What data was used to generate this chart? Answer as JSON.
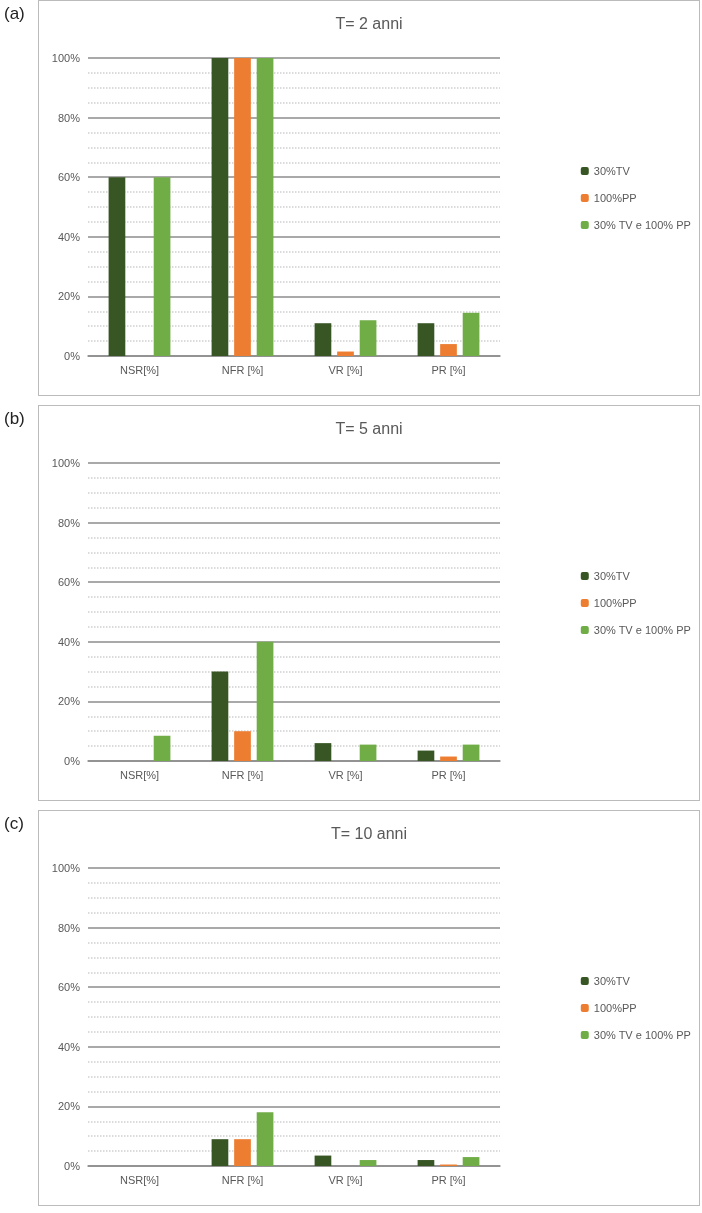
{
  "chart_data": [
    {
      "type": "bar",
      "title": "T= 2 anni",
      "annotations": [
        "(a)"
      ],
      "categories": [
        "NSR[%]",
        "NFR [%]",
        "VR [%]",
        "PR [%]"
      ],
      "series": [
        {
          "name": "30%TV",
          "color": "#375623",
          "values": [
            60,
            100,
            11,
            11
          ]
        },
        {
          "name": "100%PP",
          "color": "#ed7d31",
          "values": [
            0,
            100,
            1.5,
            4
          ]
        },
        {
          "name": "30% TV e 100% PP",
          "color": "#70ad47",
          "values": [
            60,
            100,
            12,
            14.5
          ]
        }
      ],
      "ylim": [
        0,
        100
      ],
      "yticks": [
        {
          "value": 0,
          "label": "0%"
        },
        {
          "value": 20,
          "label": "20%"
        },
        {
          "value": 40,
          "label": "40%"
        },
        {
          "value": 60,
          "label": "60%"
        },
        {
          "value": 80,
          "label": "80%"
        },
        {
          "value": 100,
          "label": "100%"
        }
      ],
      "grid": "y",
      "legend": "right"
    },
    {
      "type": "bar",
      "title": "T= 5 anni",
      "annotations": [
        "(b)"
      ],
      "categories": [
        "NSR[%]",
        "NFR [%]",
        "VR [%]",
        "PR [%]"
      ],
      "series": [
        {
          "name": "30%TV",
          "color": "#375623",
          "values": [
            0,
            30,
            6,
            3.5
          ]
        },
        {
          "name": "100%PP",
          "color": "#ed7d31",
          "values": [
            0,
            10,
            0,
            1.5
          ]
        },
        {
          "name": "30% TV e 100% PP",
          "color": "#70ad47",
          "values": [
            8.5,
            40,
            5.5,
            5.5
          ]
        }
      ],
      "ylim": [
        0,
        100
      ],
      "yticks": [
        {
          "value": 0,
          "label": "0%"
        },
        {
          "value": 20,
          "label": "20%"
        },
        {
          "value": 40,
          "label": "40%"
        },
        {
          "value": 60,
          "label": "60%"
        },
        {
          "value": 80,
          "label": "80%"
        },
        {
          "value": 100,
          "label": "100%"
        }
      ],
      "grid": "y",
      "legend": "right"
    },
    {
      "type": "bar",
      "title": "T= 10 anni",
      "annotations": [
        "(c)"
      ],
      "categories": [
        "NSR[%]",
        "NFR [%]",
        "VR [%]",
        "PR [%]"
      ],
      "series": [
        {
          "name": "30%TV",
          "color": "#375623",
          "values": [
            0,
            9,
            3.5,
            2
          ]
        },
        {
          "name": "100%PP",
          "color": "#ed7d31",
          "values": [
            0,
            9,
            0,
            0.5
          ]
        },
        {
          "name": "30% TV e 100% PP",
          "color": "#70ad47",
          "values": [
            0,
            18,
            2,
            3
          ]
        }
      ],
      "ylim": [
        0,
        100
      ],
      "yticks": [
        {
          "value": 0,
          "label": "0%"
        },
        {
          "value": 20,
          "label": "20%"
        },
        {
          "value": 40,
          "label": "40%"
        },
        {
          "value": 60,
          "label": "60%"
        },
        {
          "value": 80,
          "label": "80%"
        },
        {
          "value": 100,
          "label": "100%"
        }
      ],
      "grid": "y",
      "legend": "right"
    }
  ]
}
